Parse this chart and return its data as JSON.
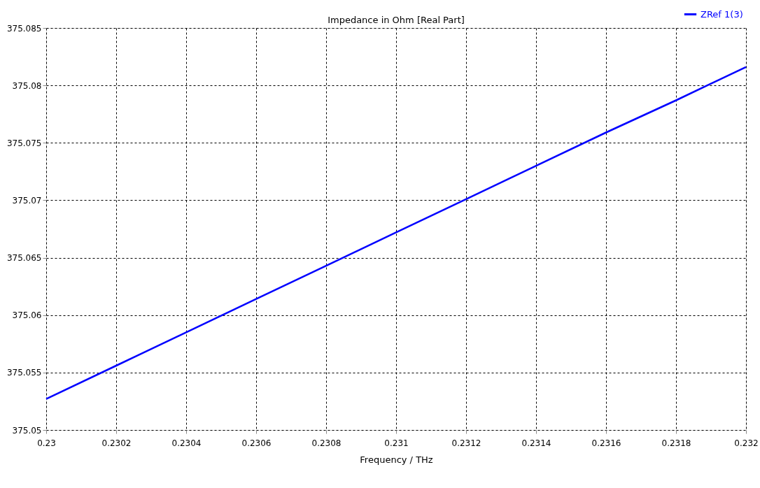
{
  "chart_data": {
    "type": "line",
    "title": "Impedance in Ohm [Real Part]",
    "xlabel": "Frequency / THz",
    "x": [
      0.23,
      0.2302,
      0.2304,
      0.2306,
      0.2308,
      0.231,
      0.2312,
      0.2314,
      0.2316,
      0.2318,
      0.232
    ],
    "series": [
      {
        "name": "ZRef 1(3)",
        "color": "#0000ff",
        "values": [
          375.0527,
          375.0556,
          375.0585,
          375.0614,
          375.0643,
          375.0672,
          375.0701,
          375.073,
          375.0759,
          375.0787,
          375.0816
        ]
      }
    ],
    "xlim": [
      0.23,
      0.232
    ],
    "xticks": [
      0.23,
      0.2302,
      0.2304,
      0.2306,
      0.2308,
      0.231,
      0.2312,
      0.2314,
      0.2316,
      0.2318,
      0.232
    ],
    "ylim": [
      375.05,
      375.085
    ],
    "yticks": [
      375.05,
      375.055,
      375.06,
      375.065,
      375.07,
      375.075,
      375.08,
      375.085
    ],
    "grid": true,
    "legend": "top right",
    "line_style": "solid",
    "marker": "none"
  }
}
